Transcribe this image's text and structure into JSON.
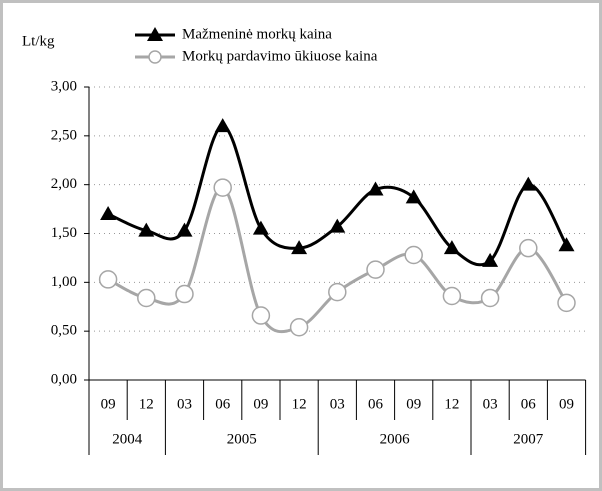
{
  "chart_data": {
    "type": "line",
    "y_label": "Lt/kg",
    "category_groups": [
      {
        "label": "2004",
        "categories": [
          "09",
          "12"
        ]
      },
      {
        "label": "2005",
        "categories": [
          "03",
          "06",
          "09",
          "12"
        ]
      },
      {
        "label": "2006",
        "categories": [
          "03",
          "06",
          "09",
          "12"
        ]
      },
      {
        "label": "2007",
        "categories": [
          "03",
          "06",
          "09"
        ]
      }
    ],
    "series": [
      {
        "name": "Mažmeninė morkų kaina",
        "color": "#000000",
        "marker": "triangle",
        "values": [
          1.7,
          1.53,
          1.53,
          2.6,
          1.55,
          1.35,
          1.57,
          1.95,
          1.87,
          1.35,
          1.22,
          2.0,
          1.38
        ]
      },
      {
        "name": "Morkų pardavimo ūkiuose kaina",
        "color": "#a6a6a6",
        "marker": "circle",
        "values": [
          1.03,
          0.84,
          0.88,
          1.97,
          0.66,
          0.54,
          0.9,
          1.13,
          1.28,
          0.86,
          0.84,
          1.35,
          0.79
        ]
      }
    ],
    "ylim": [
      0,
      3
    ],
    "yticks": [
      {
        "value": 0,
        "label": "0,00"
      },
      {
        "value": 0.5,
        "label": "0,50"
      },
      {
        "value": 1,
        "label": "1,00"
      },
      {
        "value": 1.5,
        "label": "1,50"
      },
      {
        "value": 2,
        "label": "2,00"
      },
      {
        "value": 2.5,
        "label": "2,50"
      },
      {
        "value": 3,
        "label": "3,00"
      }
    ],
    "grid": true,
    "smooth": true,
    "legend": "top"
  }
}
